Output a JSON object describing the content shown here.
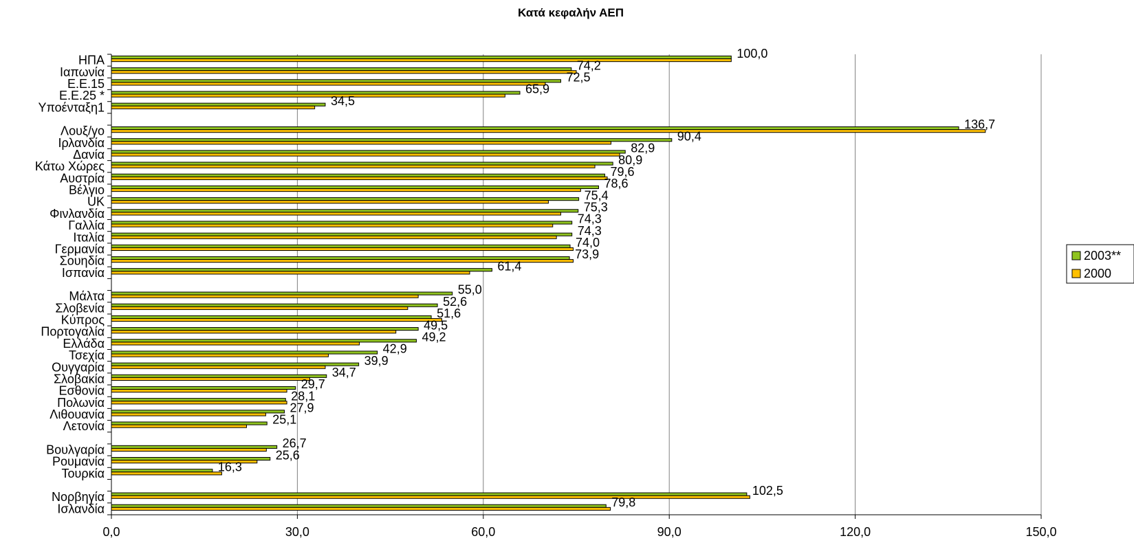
{
  "chart_data": {
    "type": "bar",
    "orientation": "horizontal",
    "title": "Κατά κεφαλήν ΑΕΠ",
    "xlim": [
      0,
      150
    ],
    "xticks": [
      "0,0",
      "30,0",
      "60,0",
      "90,0",
      "120,0",
      "150,0"
    ],
    "grid": "vertical",
    "legend_position": "right",
    "colors": {
      "2003": "#8FC31F",
      "2000": "#FFC000",
      "border": "#000000"
    },
    "categories": [
      "ΗΠΑ",
      "Ιαπωνία",
      "Ε.Ε.15",
      "Ε.Ε.25 *",
      "Υποένταξη1",
      "Λουξ/γο",
      "Ιρλανδία",
      "Δανία",
      "Κάτω Χώρες",
      "Αυστρία",
      "Βέλγιο",
      "UK",
      "Φινλανδία",
      "Γαλλία",
      "Ιταλία",
      "Γερμανία",
      "Σουηδία",
      "Ισπανία",
      "Μάλτα",
      "Σλοβενία",
      "Κύπρος",
      "Πορτογαλία",
      "Ελλάδα",
      "Τσεχία",
      "Ουγγαρία",
      "Σλοβακία",
      "Εσθονία",
      "Πολωνία",
      "Λιθουανία",
      "Λετονία",
      "Βουλγαρία",
      "Ρουμανία",
      "Τουρκία",
      "Νορβηγία",
      "Ισλανδία"
    ],
    "groups": [
      5,
      13,
      12,
      3,
      2
    ],
    "series": [
      {
        "name": "2003**",
        "values": [
          100.0,
          74.2,
          72.5,
          65.9,
          34.5,
          136.7,
          90.4,
          82.9,
          80.9,
          79.6,
          78.6,
          75.4,
          75.3,
          74.3,
          74.3,
          74.0,
          73.9,
          61.4,
          55.0,
          52.6,
          51.6,
          49.5,
          49.2,
          42.9,
          39.9,
          34.7,
          29.7,
          28.1,
          27.9,
          25.1,
          26.7,
          25.6,
          16.3,
          102.5,
          79.8
        ]
      },
      {
        "name": "2000",
        "values": [
          100.0,
          75.0,
          70.0,
          63.5,
          32.8,
          141.0,
          80.6,
          82.0,
          78.0,
          80.0,
          75.7,
          70.5,
          72.5,
          71.2,
          71.8,
          74.5,
          74.5,
          57.8,
          49.5,
          47.8,
          53.3,
          45.9,
          40.0,
          35.0,
          34.5,
          32.0,
          28.3,
          28.3,
          24.9,
          21.8,
          25.0,
          23.5,
          17.8,
          103.0,
          80.5
        ]
      }
    ],
    "data_labels": [
      "100,0",
      "74,2",
      "72,5",
      "65,9",
      "34,5",
      "136,7",
      "90,4",
      "82,9",
      "80,9",
      "79,6",
      "78,6",
      "75,4",
      "75,3",
      "74,3",
      "74,3",
      "74,0",
      "73,9",
      "61,4",
      "55,0",
      "52,6",
      "51,6",
      "49,5",
      "49,2",
      "42,9",
      "39,9",
      "34,7",
      "29,7",
      "28,1",
      "27,9",
      "25,1",
      "26,7",
      "25,6",
      "16,3",
      "102,5",
      "79,8"
    ]
  }
}
